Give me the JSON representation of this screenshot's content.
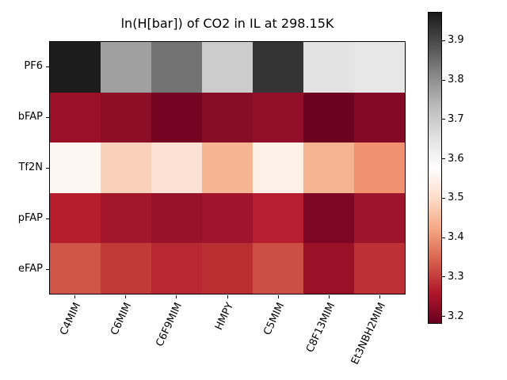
{
  "chart_data": {
    "type": "heatmap",
    "title": "ln(H[bar]) of CO2 in IL at 298.15K",
    "rows": [
      "PF6",
      "bFAP",
      "Tf2N",
      "pFAP",
      "eFAP"
    ],
    "columns": [
      "C4MIM",
      "C6MIM",
      "C6F9MIM",
      "HMPY",
      "C5MIM",
      "C8F13MIM",
      "Et3NBH2MIM"
    ],
    "values": [
      [
        3.97,
        3.77,
        3.84,
        3.7,
        3.93,
        3.66,
        3.64
      ],
      [
        3.23,
        3.22,
        3.19,
        3.21,
        3.22,
        3.18,
        3.21
      ],
      [
        3.56,
        3.48,
        3.51,
        3.44,
        3.54,
        3.44,
        3.4
      ],
      [
        3.26,
        3.24,
        3.23,
        3.24,
        3.26,
        3.2,
        3.24
      ],
      [
        3.33,
        3.3,
        3.28,
        3.28,
        3.32,
        3.23,
        3.29
      ]
    ],
    "cell_colors": [
      [
        "#1c1c1c",
        "#a0a0a0",
        "#737373",
        "#cccccc",
        "#343434",
        "#e3e3e3",
        "#e7e7e7"
      ],
      [
        "#9a1028",
        "#8d0f27",
        "#740522",
        "#870c26",
        "#930f29",
        "#6b0320",
        "#830926"
      ],
      [
        "#fdf6f1",
        "#f9d0ba",
        "#fce2d4",
        "#f5b593",
        "#fdf0e7",
        "#f5b491",
        "#f0926f"
      ],
      [
        "#b61d2d",
        "#a4162c",
        "#98122a",
        "#a0152c",
        "#b71e2f",
        "#7c0624",
        "#9d142b"
      ],
      [
        "#cf5548",
        "#c23a38",
        "#b82830",
        "#bb2f33",
        "#cc4e44",
        "#991126",
        "#bd3136"
      ]
    ],
    "colormap": "RdGy",
    "vmin": 3.181,
    "vmax": 3.973,
    "grid": false,
    "xtick_rotation_deg": 65,
    "colorbar": {
      "position": "right",
      "ticks": [
        "3.2",
        "3.3",
        "3.4",
        "3.5",
        "3.6",
        "3.7",
        "3.8",
        "3.9"
      ],
      "gradient_stops_bottom_to_top": [
        "#67001f",
        "#b2182b",
        "#d6604d",
        "#f4a582",
        "#fddbc7",
        "#ffffff",
        "#e0e0e0",
        "#bababa",
        "#878787",
        "#4d4d4d",
        "#1a1a1a"
      ]
    }
  }
}
